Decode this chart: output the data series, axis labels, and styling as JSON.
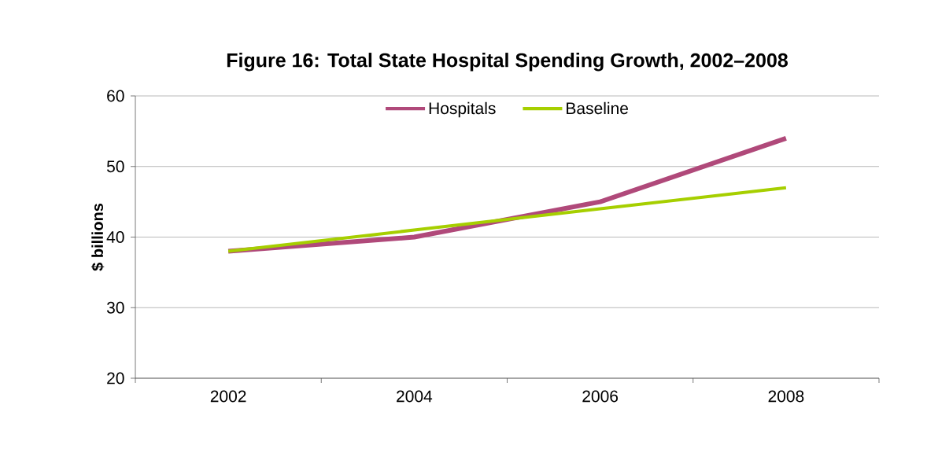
{
  "chart_data": {
    "type": "line",
    "title": "Figure 16: Total State Hospital Spending Growth, 2002–2008",
    "ylabel": "$ billions",
    "categories": [
      "2002",
      "2004",
      "2006",
      "2008"
    ],
    "series": [
      {
        "name": "Hospitals",
        "color": "#b0497a",
        "values": [
          38,
          40,
          45,
          54
        ]
      },
      {
        "name": "Baseline",
        "color": "#a6cf00",
        "values": [
          38,
          41,
          44,
          47
        ]
      }
    ],
    "ylim": [
      20,
      60
    ],
    "yticks": [
      20,
      30,
      40,
      50,
      60
    ],
    "grid": "y",
    "legend": "top"
  }
}
